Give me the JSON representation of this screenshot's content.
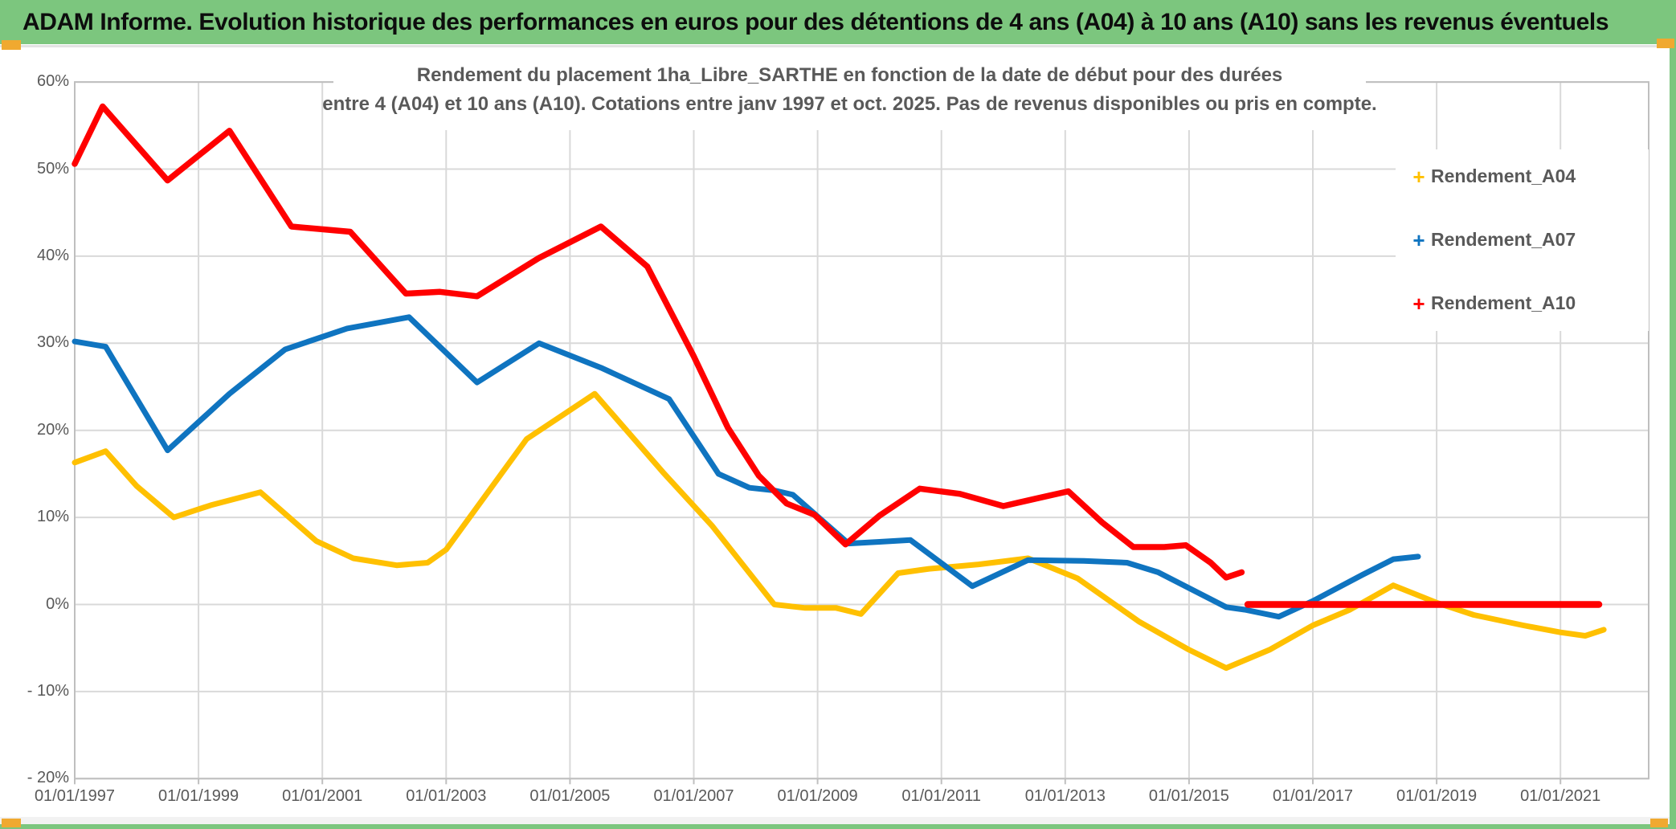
{
  "window": {
    "title": "ADAM Informe. Evolution historique des performances en euros pour des détentions de 4 ans (A04) à 10 ans (A10) sans les revenus éventuels"
  },
  "chart": {
    "subtitle_line1": "Rendement du placement 1ha_Libre_SARTHE en fonction de la date de début pour des durées",
    "subtitle_line2": "entre 4 (A04) et 10 ans (A10). Cotations entre janv 1997 et oct. 2025. Pas de revenus disponibles ou pris en compte."
  },
  "colors": {
    "titlebar_green": "#7CC67E",
    "accent_orange": "#F0A930",
    "grid": "#D9D9D9",
    "plot_border": "#BFBFBF",
    "label_gray": "#595959",
    "series_a04": "#FFC000",
    "series_a07": "#0F74C0",
    "series_a10": "#FF0000"
  },
  "chart_data": {
    "type": "line",
    "title": "Rendement du placement 1ha_Libre_SARTHE en fonction de la date de début pour des durées entre 4 (A04) et 10 ans (A10). Cotations entre janv 1997 et oct. 2025. Pas de revenus disponibles ou pris en compte.",
    "grid": true,
    "legend_position": "right",
    "x_axis": {
      "tick_labels": [
        "01/01/1997",
        "01/01/1999",
        "01/01/2001",
        "01/01/2003",
        "01/01/2005",
        "01/01/2007",
        "01/01/2009",
        "01/01/2011",
        "01/01/2013",
        "01/01/2015",
        "01/01/2017",
        "01/01/2019",
        "01/01/2021"
      ],
      "tick_years": [
        1997,
        1999,
        2001,
        2003,
        2005,
        2007,
        2009,
        2011,
        2013,
        2015,
        2017,
        2019,
        2021
      ],
      "range_years": [
        1997,
        2022.4
      ]
    },
    "y_axis": {
      "tick_labels": [
        "60%",
        "50%",
        "40%",
        "30%",
        "20%",
        "10%",
        "0%",
        "- 10%",
        "- 20%"
      ],
      "tick_values": [
        60,
        50,
        40,
        30,
        20,
        10,
        0,
        -10,
        -20
      ],
      "min": -20,
      "max": 60,
      "unit": "%"
    },
    "legend": {
      "items": [
        {
          "label": "Rendement_A04",
          "marker": "+",
          "color": "#FFC000"
        },
        {
          "label": "Rendement_A07",
          "marker": "+",
          "color": "#0F74C0"
        },
        {
          "label": "Rendement_A10",
          "marker": "+",
          "color": "#FF0000"
        }
      ]
    },
    "series": [
      {
        "name": "Rendement_A04",
        "color": "#FFC000",
        "width": 7,
        "points": [
          [
            1997.0,
            16.3
          ],
          [
            1997.5,
            17.6
          ],
          [
            1998.0,
            13.6
          ],
          [
            1998.6,
            10.0
          ],
          [
            1999.2,
            11.4
          ],
          [
            2000.0,
            12.9
          ],
          [
            2000.9,
            7.3
          ],
          [
            2001.5,
            5.3
          ],
          [
            2002.2,
            4.5
          ],
          [
            2002.7,
            4.8
          ],
          [
            2003.0,
            6.3
          ],
          [
            2004.3,
            19.0
          ],
          [
            2005.4,
            24.2
          ],
          [
            2006.5,
            15.2
          ],
          [
            2007.3,
            9.0
          ],
          [
            2008.3,
            0.0
          ],
          [
            2008.8,
            -0.4
          ],
          [
            2009.3,
            -0.4
          ],
          [
            2009.7,
            -1.1
          ],
          [
            2010.3,
            3.6
          ],
          [
            2010.8,
            4.1
          ],
          [
            2011.6,
            4.6
          ],
          [
            2012.4,
            5.3
          ],
          [
            2013.2,
            3.0
          ],
          [
            2014.2,
            -2.0
          ],
          [
            2015.0,
            -5.2
          ],
          [
            2015.6,
            -7.3
          ],
          [
            2016.3,
            -5.2
          ],
          [
            2017.0,
            -2.4
          ],
          [
            2017.6,
            -0.6
          ],
          [
            2018.3,
            2.2
          ],
          [
            2019.0,
            0.2
          ],
          [
            2019.6,
            -1.2
          ],
          [
            2020.4,
            -2.4
          ],
          [
            2021.0,
            -3.2
          ],
          [
            2021.4,
            -3.6
          ],
          [
            2021.7,
            -2.9
          ]
        ]
      },
      {
        "name": "Rendement_A07",
        "color": "#0F74C0",
        "width": 7,
        "points": [
          [
            1997.0,
            30.2
          ],
          [
            1997.5,
            29.6
          ],
          [
            1998.5,
            17.7
          ],
          [
            1999.5,
            24.2
          ],
          [
            2000.4,
            29.3
          ],
          [
            2001.4,
            31.7
          ],
          [
            2002.4,
            33.0
          ],
          [
            2003.5,
            25.5
          ],
          [
            2004.5,
            30.0
          ],
          [
            2005.5,
            27.2
          ],
          [
            2006.6,
            23.6
          ],
          [
            2007.4,
            15.0
          ],
          [
            2007.9,
            13.4
          ],
          [
            2008.3,
            13.1
          ],
          [
            2008.6,
            12.6
          ],
          [
            2009.5,
            7.0
          ],
          [
            2010.0,
            7.2
          ],
          [
            2010.5,
            7.4
          ],
          [
            2011.5,
            2.1
          ],
          [
            2012.4,
            5.1
          ],
          [
            2013.3,
            5.0
          ],
          [
            2014.0,
            4.8
          ],
          [
            2014.5,
            3.7
          ],
          [
            2015.6,
            -0.3
          ],
          [
            2015.9,
            -0.6
          ],
          [
            2016.45,
            -1.4
          ],
          [
            2017.0,
            0.4
          ],
          [
            2017.8,
            3.4
          ],
          [
            2018.3,
            5.2
          ],
          [
            2018.7,
            5.5
          ]
        ]
      },
      {
        "name": "Rendement_A10",
        "color": "#FF0000",
        "width": 7.5,
        "points": [
          [
            1997.0,
            50.6
          ],
          [
            1997.45,
            57.2
          ],
          [
            1998.5,
            48.7
          ],
          [
            1999.5,
            54.4
          ],
          [
            2000.5,
            43.4
          ],
          [
            2001.45,
            42.8
          ],
          [
            2002.35,
            35.7
          ],
          [
            2002.9,
            35.9
          ],
          [
            2003.5,
            35.4
          ],
          [
            2004.5,
            39.8
          ],
          [
            2005.5,
            43.4
          ],
          [
            2006.25,
            38.8
          ],
          [
            2007.0,
            28.5
          ],
          [
            2007.55,
            20.3
          ],
          [
            2008.05,
            14.8
          ],
          [
            2008.5,
            11.6
          ],
          [
            2008.95,
            10.3
          ],
          [
            2009.45,
            6.9
          ],
          [
            2010.0,
            10.2
          ],
          [
            2010.65,
            13.3
          ],
          [
            2011.3,
            12.7
          ],
          [
            2012.0,
            11.3
          ],
          [
            2012.55,
            12.2
          ],
          [
            2013.05,
            13.0
          ],
          [
            2013.6,
            9.4
          ],
          [
            2014.1,
            6.6
          ],
          [
            2014.6,
            6.6
          ],
          [
            2014.95,
            6.8
          ],
          [
            2015.35,
            4.8
          ],
          [
            2015.6,
            3.1
          ],
          [
            2015.85,
            3.7
          ]
        ]
      },
      {
        "name": "Rendement_A10 (segment à 0%)",
        "color": "#FF0000",
        "width": 8.5,
        "points": [
          [
            2015.95,
            0.0
          ],
          [
            2021.62,
            0.0
          ]
        ]
      }
    ]
  }
}
